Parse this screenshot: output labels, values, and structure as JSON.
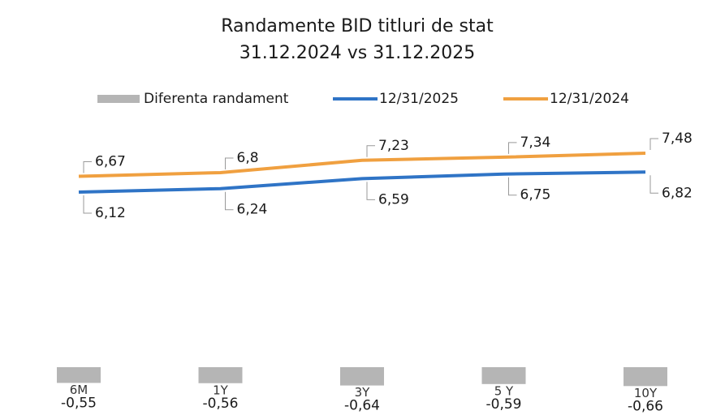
{
  "chart_data": {
    "type": "line",
    "title": "Randamente BID titluri de stat",
    "subtitle": "31.12.2024 vs 31.12.2025",
    "categories": [
      "6M",
      "1Y",
      "3Y",
      "5 Y",
      "10Y"
    ],
    "series": [
      {
        "name": "Diferenta randament",
        "type": "bar",
        "color": "#b5b5b5",
        "values": [
          -0.55,
          -0.56,
          -0.64,
          -0.59,
          -0.66
        ],
        "value_labels": [
          "-0,55",
          "-0,56",
          "-0,64",
          "-0,59",
          "-0,66"
        ]
      },
      {
        "name": "12/31/2025",
        "type": "line",
        "color": "#2f74c6",
        "values": [
          6.12,
          6.24,
          6.59,
          6.75,
          6.82
        ],
        "value_labels": [
          "6,12",
          "6,24",
          "6,59",
          "6,75",
          "6,82"
        ]
      },
      {
        "name": "12/31/2024",
        "type": "line",
        "color": "#f0a040",
        "values": [
          6.67,
          6.8,
          7.23,
          7.34,
          7.48
        ],
        "value_labels": [
          "6,67",
          "6,8",
          "7,23",
          "7,34",
          "7,48"
        ]
      }
    ],
    "legend": "top"
  }
}
